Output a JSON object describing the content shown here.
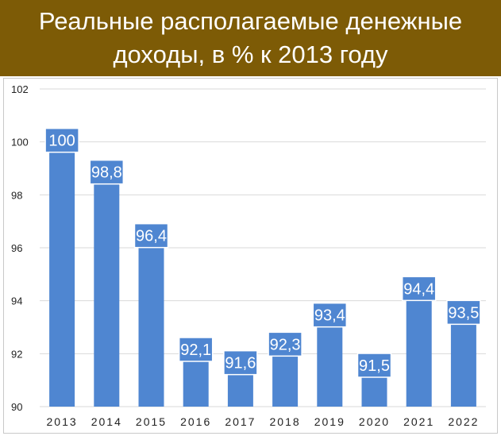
{
  "title": "Реальные располагаемые денежные доходы, в % к 2013 году",
  "colors": {
    "banner": "#7d5b06",
    "bar": "#4f86d1",
    "label_box": "#4f86d1",
    "grid": "#d9d9d9"
  },
  "chart_data": {
    "type": "bar",
    "title": "Реальные располагаемые денежные доходы, в % к 2013 году",
    "categories": [
      "2013",
      "2014",
      "2015",
      "2016",
      "2017",
      "2018",
      "2019",
      "2020",
      "2021",
      "2022"
    ],
    "values": [
      100,
      98.8,
      96.4,
      92.1,
      91.6,
      92.3,
      93.4,
      91.5,
      94.4,
      93.5
    ],
    "data_labels": [
      "100",
      "98,8",
      "96,4",
      "92,1",
      "91,6",
      "92,3",
      "93,4",
      "91,5",
      "94,4",
      "93,5"
    ],
    "ylim": [
      90,
      102
    ],
    "yticks": [
      90,
      92,
      94,
      96,
      98,
      100,
      102
    ],
    "grid": true,
    "legend": "none",
    "xlabel": "",
    "ylabel": ""
  }
}
